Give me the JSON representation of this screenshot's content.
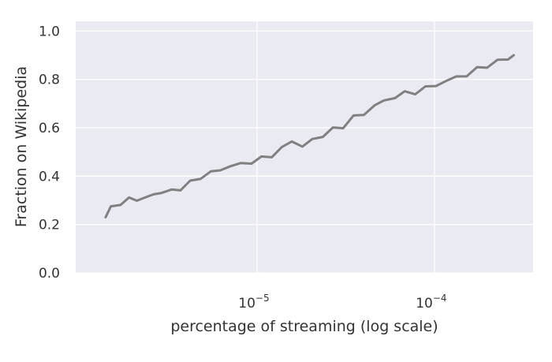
{
  "chart_data": {
    "type": "line",
    "title": "",
    "xlabel": "percentage of streaming (log scale)",
    "ylabel": "Fraction on Wikipedia",
    "x_scale": "log",
    "xlim": [
      9.5e-07,
      0.00036
    ],
    "ylim": [
      0.0,
      1.04
    ],
    "grid": true,
    "x_ticks": [
      {
        "value": 1e-05,
        "base": "10",
        "exp": "−5"
      },
      {
        "value": 0.0001,
        "base": "10",
        "exp": "−4"
      }
    ],
    "y_ticks": [
      {
        "value": 0.0,
        "label": "0.0"
      },
      {
        "value": 0.2,
        "label": "0.2"
      },
      {
        "value": 0.4,
        "label": "0.4"
      },
      {
        "value": 0.6,
        "label": "0.6"
      },
      {
        "value": 0.8,
        "label": "0.8"
      },
      {
        "value": 1.0,
        "label": "1.0"
      }
    ],
    "series": [
      {
        "color": "#808080",
        "x": [
          1.4e-06,
          1.5e-06,
          1.7e-06,
          1.9e-06,
          2.1e-06,
          2.3e-06,
          2.6e-06,
          2.9e-06,
          3.3e-06,
          3.7e-06,
          4.2e-06,
          4.8e-06,
          5.5e-06,
          6.2e-06,
          7.1e-06,
          8.1e-06,
          9.3e-06,
          1.06e-05,
          1.21e-05,
          1.38e-05,
          1.57e-05,
          1.8e-05,
          2.05e-05,
          2.35e-05,
          2.68e-05,
          3.06e-05,
          3.5e-05,
          4e-05,
          4.6e-05,
          5.2e-05,
          6e-05,
          6.8e-05,
          7.8e-05,
          8.9e-05,
          0.000102,
          0.000116,
          0.000133,
          0.000152,
          0.000174,
          0.000198,
          0.000227,
          0.00026,
          0.00028
        ],
        "y": [
          0.23,
          0.27,
          0.29,
          0.3,
          0.31,
          0.3,
          0.33,
          0.33,
          0.34,
          0.35,
          0.37,
          0.4,
          0.41,
          0.43,
          0.44,
          0.45,
          0.46,
          0.47,
          0.49,
          0.51,
          0.55,
          0.52,
          0.55,
          0.57,
          0.59,
          0.61,
          0.64,
          0.66,
          0.69,
          0.71,
          0.73,
          0.74,
          0.75,
          0.76,
          0.78,
          0.79,
          0.81,
          0.82,
          0.84,
          0.86,
          0.87,
          0.89,
          0.9
        ]
      }
    ]
  }
}
